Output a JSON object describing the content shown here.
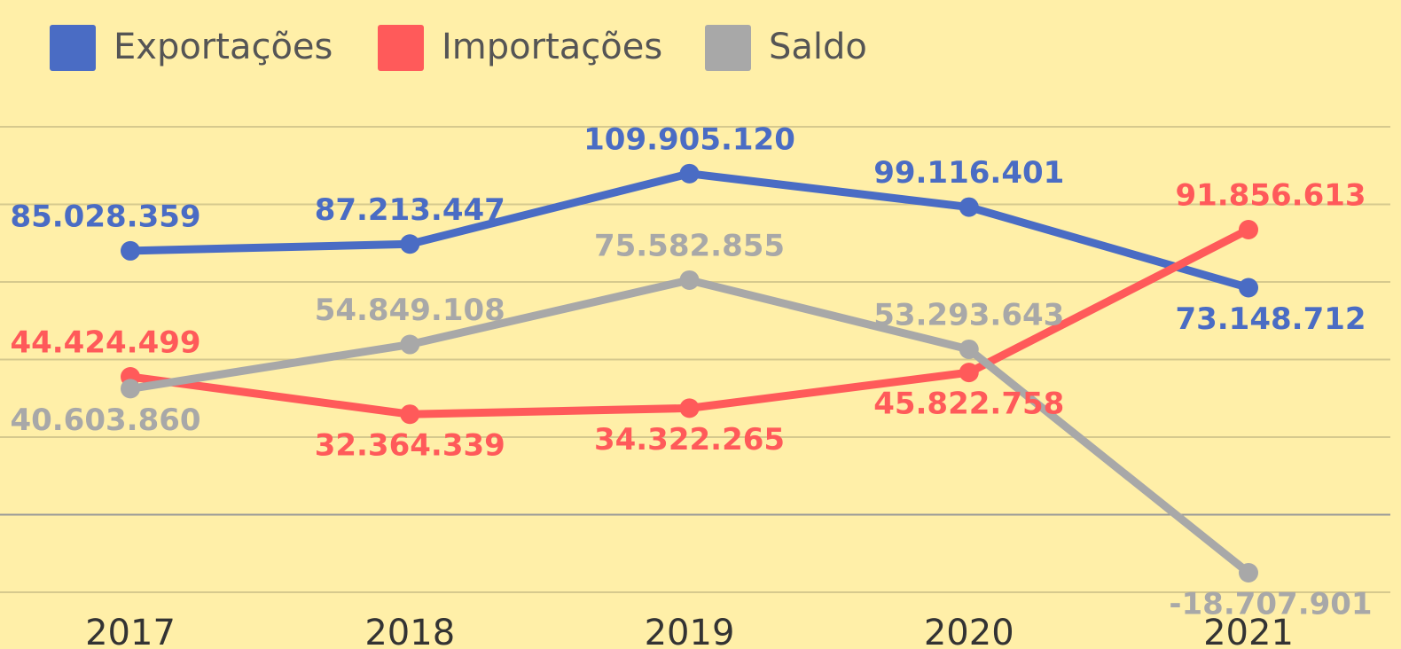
{
  "chart_data": {
    "type": "line",
    "categories": [
      "2017",
      "2018",
      "2019",
      "2020",
      "2021"
    ],
    "series": [
      {
        "name": "Exportações",
        "color": "#4a6cc4",
        "values": [
          85028359,
          87213447,
          109905120,
          99116401,
          73148712
        ],
        "value_labels": [
          "85.028.359",
          "87.213.447",
          "109.905.120",
          "99.116.401",
          "73.148.712"
        ]
      },
      {
        "name": "Importações",
        "color": "#ff5a5a",
        "values": [
          44424499,
          32364339,
          34322265,
          45822758,
          91856613
        ],
        "value_labels": [
          "44.424.499",
          "32.364.339",
          "34.322.265",
          "45.822.758",
          "91.856.613"
        ]
      },
      {
        "name": "Saldo",
        "color": "#a8a8a8",
        "values": [
          40603860,
          54849108,
          75582855,
          53293643,
          -18707901
        ],
        "value_labels": [
          "40.603.860",
          "54.849.108",
          "75.582.855",
          "53.293.643",
          "-18.707.901"
        ]
      }
    ],
    "ylim": [
      -25000000,
      125000000
    ],
    "yticks": [
      -25000000,
      0,
      25000000,
      50000000,
      75000000,
      100000000,
      125000000
    ],
    "grid": true,
    "legend": "top"
  }
}
